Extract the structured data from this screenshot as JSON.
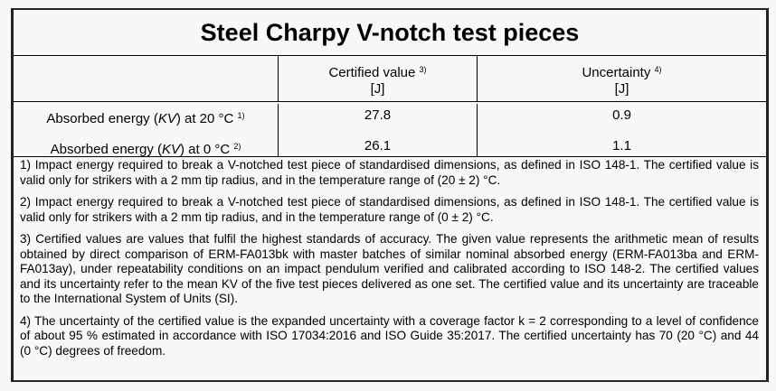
{
  "title": "Steel Charpy V-notch test pieces",
  "header": {
    "col2": "Certified value",
    "col2_sup": "3)",
    "col2_unit": "[J]",
    "col3": "Uncertainty",
    "col3_sup": "4)",
    "col3_unit": "[J]"
  },
  "rows": [
    {
      "label_pre": "Absorbed energy (",
      "label_kv": "KV",
      "label_post": ") at 20 °C",
      "sup": "1)",
      "value": "27.8",
      "uncertainty": "0.9"
    },
    {
      "label_pre": "Absorbed energy (",
      "label_kv": "KV",
      "label_post": ") at 0 °C",
      "sup": "2)",
      "value": "26.1",
      "uncertainty": "1.1"
    }
  ],
  "notes": [
    "1) Impact energy required to break a V-notched test piece of standardised dimensions, as defined in ISO 148-1. The certified value is valid only for strikers with a 2 mm tip radius, and in the temperature range of (20 ± 2) °C.",
    "2) Impact energy required to break a V-notched test piece of standardised dimensions, as defined in ISO 148-1. The certified value is valid only for strikers with a 2 mm tip radius, and in the temperature range of (0 ± 2) °C.",
    "3) Certified values are values that fulfil the highest standards of accuracy. The given value represents the arithmetic mean of results obtained by direct comparison of ERM-FA013bk with master batches of similar nominal absorbed energy (ERM-FA013ba and ERM-FA013ay), under repeatability conditions on an impact pendulum verified and calibrated according to ISO 148-2. The certified values and its uncertainty refer to the mean KV of the five test pieces delivered as one set. The certified value and its uncertainty are traceable to the International System of Units (SI).",
    "4) The uncertainty of the certified value is the expanded uncertainty with a coverage factor k = 2 corresponding to a level of confidence of about 95 % estimated in accordance with ISO 17034:2016 and ISO Guide 35:2017. The certified uncertainty has 70 (20 °C) and 44 (0 °C) degrees of freedom."
  ]
}
